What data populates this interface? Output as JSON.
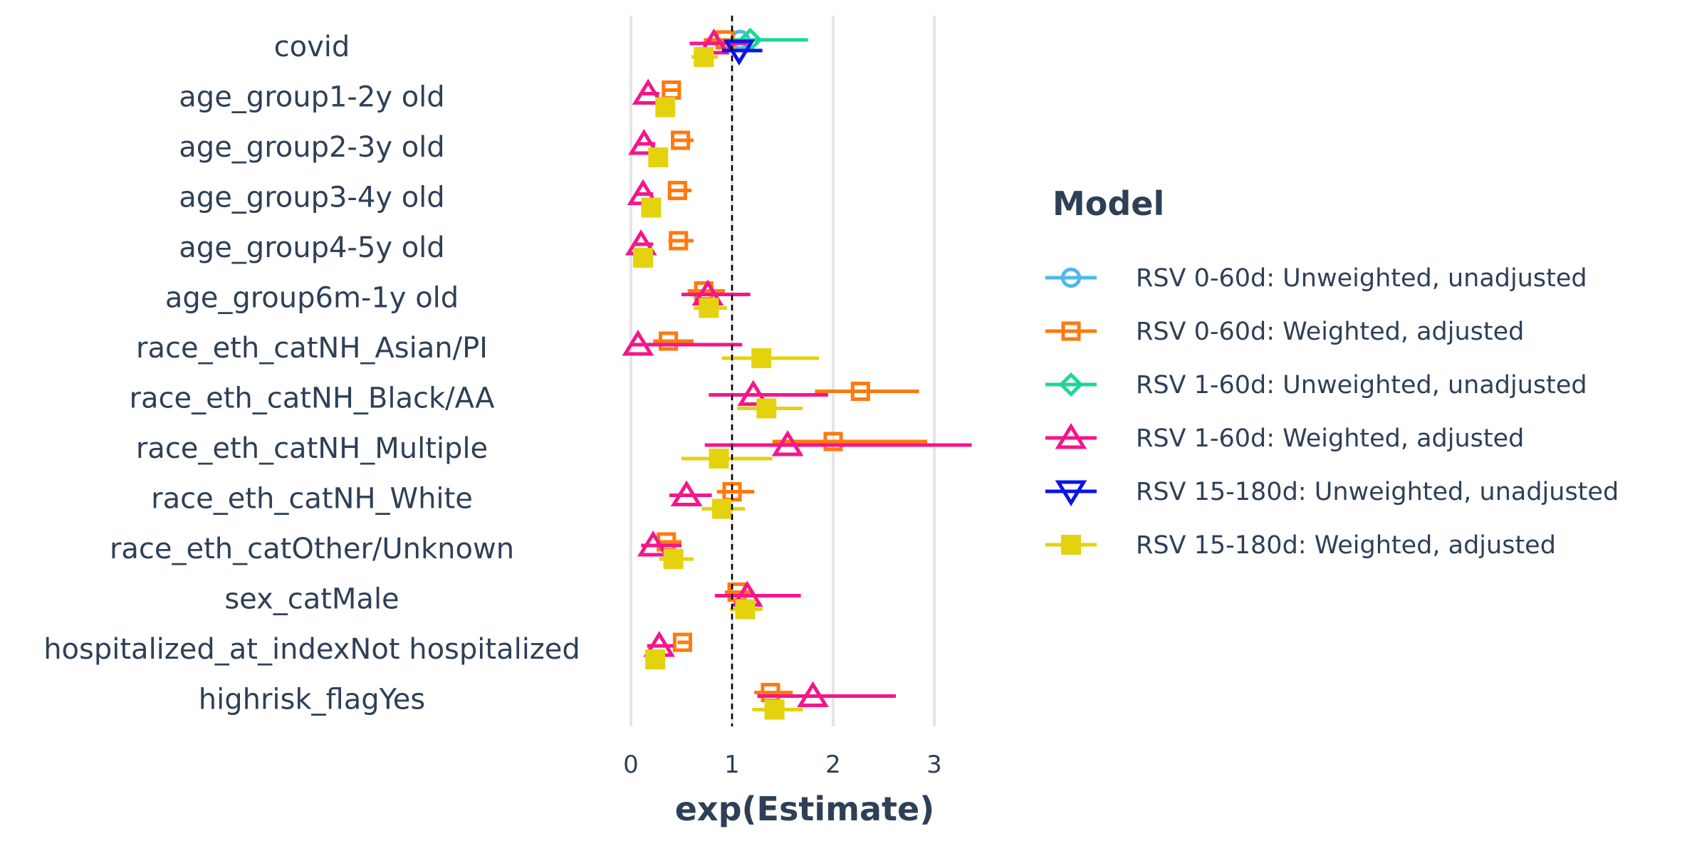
{
  "chart_data": {
    "type": "scatter",
    "subtype": "forest-plot",
    "title": "",
    "xlabel": "exp(Estimate)",
    "ylabel": "",
    "xlim": [
      -0.05,
      3.4
    ],
    "xticks": [
      0,
      1,
      2,
      3
    ],
    "reference_line": 1,
    "grid": "vertical major lines only",
    "legend_title": "Model",
    "legend_placement": "right",
    "categories": [
      "covid",
      "age_group1-2y old",
      "age_group2-3y old",
      "age_group3-4y old",
      "age_group4-5y old",
      "age_group6m-1y old",
      "race_eth_catNH_Asian/PI",
      "race_eth_catNH_Black/AA",
      "race_eth_catNH_Multiple",
      "race_eth_catNH_White",
      "race_eth_catOther/Unknown",
      "sex_catMale",
      "hospitalized_at_indexNot hospitalized",
      "highrisk_flagYes"
    ],
    "series": [
      {
        "name": "RSV 0-60d: Unweighted, unadjusted",
        "color": "#4fb8ea",
        "marker": "circle-open",
        "points": [
          {
            "category": "covid",
            "value": 1.08,
            "low": 0.95,
            "high": 1.2
          }
        ]
      },
      {
        "name": "RSV 0-60d: Weighted, adjusted",
        "color": "#ff7a0e",
        "marker": "square-open",
        "points": [
          {
            "category": "covid",
            "value": 0.93,
            "low": 0.72,
            "high": 1.2
          },
          {
            "category": "age_group1-2y old",
            "value": 0.4,
            "low": 0.33,
            "high": 0.49
          },
          {
            "category": "age_group2-3y old",
            "value": 0.49,
            "low": 0.4,
            "high": 0.62
          },
          {
            "category": "age_group3-4y old",
            "value": 0.46,
            "low": 0.37,
            "high": 0.6
          },
          {
            "category": "age_group4-5y old",
            "value": 0.47,
            "low": 0.37,
            "high": 0.62
          },
          {
            "category": "age_group6m-1y old",
            "value": 0.72,
            "low": 0.56,
            "high": 0.93
          },
          {
            "category": "race_eth_catNH_Asian/PI",
            "value": 0.37,
            "low": 0.22,
            "high": 0.62
          },
          {
            "category": "race_eth_catNH_Black/AA",
            "value": 2.27,
            "low": 1.82,
            "high": 2.85
          },
          {
            "category": "race_eth_catNH_Multiple",
            "value": 2.0,
            "low": 1.4,
            "high": 2.93
          },
          {
            "category": "race_eth_catNH_White",
            "value": 1.0,
            "low": 0.85,
            "high": 1.22
          },
          {
            "category": "race_eth_catOther/Unknown",
            "value": 0.35,
            "low": 0.25,
            "high": 0.5
          },
          {
            "category": "sex_catMale",
            "value": 1.05,
            "low": 0.93,
            "high": 1.2
          },
          {
            "category": "hospitalized_at_indexNot hospitalized",
            "value": 0.51,
            "low": 0.46,
            "high": 0.57
          },
          {
            "category": "highrisk_flagYes",
            "value": 1.38,
            "low": 1.22,
            "high": 1.6
          }
        ]
      },
      {
        "name": "RSV 1-60d: Unweighted, unadjusted",
        "color": "#1dd69a",
        "marker": "diamond-open",
        "points": [
          {
            "category": "covid",
            "value": 1.18,
            "low": 1.0,
            "high": 1.75
          }
        ]
      },
      {
        "name": "RSV 1-60d: Weighted, adjusted",
        "color": "#f4168a",
        "marker": "triangle-up-open",
        "points": [
          {
            "category": "covid",
            "value": 0.82,
            "low": 0.58,
            "high": 1.15
          },
          {
            "category": "age_group1-2y old",
            "value": 0.17,
            "low": 0.1,
            "high": 0.28
          },
          {
            "category": "age_group2-3y old",
            "value": 0.13,
            "low": 0.07,
            "high": 0.24
          },
          {
            "category": "age_group3-4y old",
            "value": 0.12,
            "low": 0.06,
            "high": 0.22
          },
          {
            "category": "age_group4-5y old",
            "value": 0.1,
            "low": 0.04,
            "high": 0.22
          },
          {
            "category": "age_group6m-1y old",
            "value": 0.76,
            "low": 0.5,
            "high": 1.18
          },
          {
            "category": "race_eth_catNH_Asian/PI",
            "value": 0.07,
            "low": 0.01,
            "high": 1.1
          },
          {
            "category": "race_eth_catNH_Black/AA",
            "value": 1.21,
            "low": 0.77,
            "high": 1.95
          },
          {
            "category": "race_eth_catNH_Multiple",
            "value": 1.55,
            "low": 0.73,
            "high": 3.37
          },
          {
            "category": "race_eth_catNH_White",
            "value": 0.55,
            "low": 0.38,
            "high": 0.8
          },
          {
            "category": "race_eth_catOther/Unknown",
            "value": 0.22,
            "low": 0.1,
            "high": 0.5
          },
          {
            "category": "sex_catMale",
            "value": 1.15,
            "low": 0.83,
            "high": 1.68
          },
          {
            "category": "hospitalized_at_indexNot hospitalized",
            "value": 0.28,
            "low": 0.16,
            "high": 0.42
          },
          {
            "category": "highrisk_flagYes",
            "value": 1.8,
            "low": 1.25,
            "high": 2.62
          }
        ]
      },
      {
        "name": "RSV 15-180d: Unweighted, unadjusted",
        "color": "#0a14e8",
        "marker": "triangle-down-open",
        "points": [
          {
            "category": "covid",
            "value": 1.07,
            "low": 0.9,
            "high": 1.3
          }
        ]
      },
      {
        "name": "RSV 15-180d: Weighted, adjusted",
        "color": "#e5d20e",
        "marker": "square-filled",
        "points": [
          {
            "category": "covid",
            "value": 0.72,
            "low": 0.6,
            "high": 0.86
          },
          {
            "category": "age_group1-2y old",
            "value": 0.34,
            "low": 0.27,
            "high": 0.42
          },
          {
            "category": "age_group2-3y old",
            "value": 0.27,
            "low": 0.2,
            "high": 0.36
          },
          {
            "category": "age_group3-4y old",
            "value": 0.2,
            "low": 0.14,
            "high": 0.28
          },
          {
            "category": "age_group4-5y old",
            "value": 0.12,
            "low": 0.07,
            "high": 0.2
          },
          {
            "category": "age_group6m-1y old",
            "value": 0.77,
            "low": 0.62,
            "high": 0.95
          },
          {
            "category": "race_eth_catNH_Asian/PI",
            "value": 1.29,
            "low": 0.9,
            "high": 1.86
          },
          {
            "category": "race_eth_catNH_Black/AA",
            "value": 1.34,
            "low": 1.05,
            "high": 1.7
          },
          {
            "category": "race_eth_catNH_Multiple",
            "value": 0.87,
            "low": 0.5,
            "high": 1.4
          },
          {
            "category": "race_eth_catNH_White",
            "value": 0.9,
            "low": 0.7,
            "high": 1.13
          },
          {
            "category": "race_eth_catOther/Unknown",
            "value": 0.42,
            "low": 0.28,
            "high": 0.62
          },
          {
            "category": "sex_catMale",
            "value": 1.13,
            "low": 0.98,
            "high": 1.3
          },
          {
            "category": "hospitalized_at_indexNot hospitalized",
            "value": 0.24,
            "low": 0.19,
            "high": 0.32
          },
          {
            "category": "highrisk_flagYes",
            "value": 1.42,
            "low": 1.2,
            "high": 1.7
          }
        ]
      }
    ]
  }
}
